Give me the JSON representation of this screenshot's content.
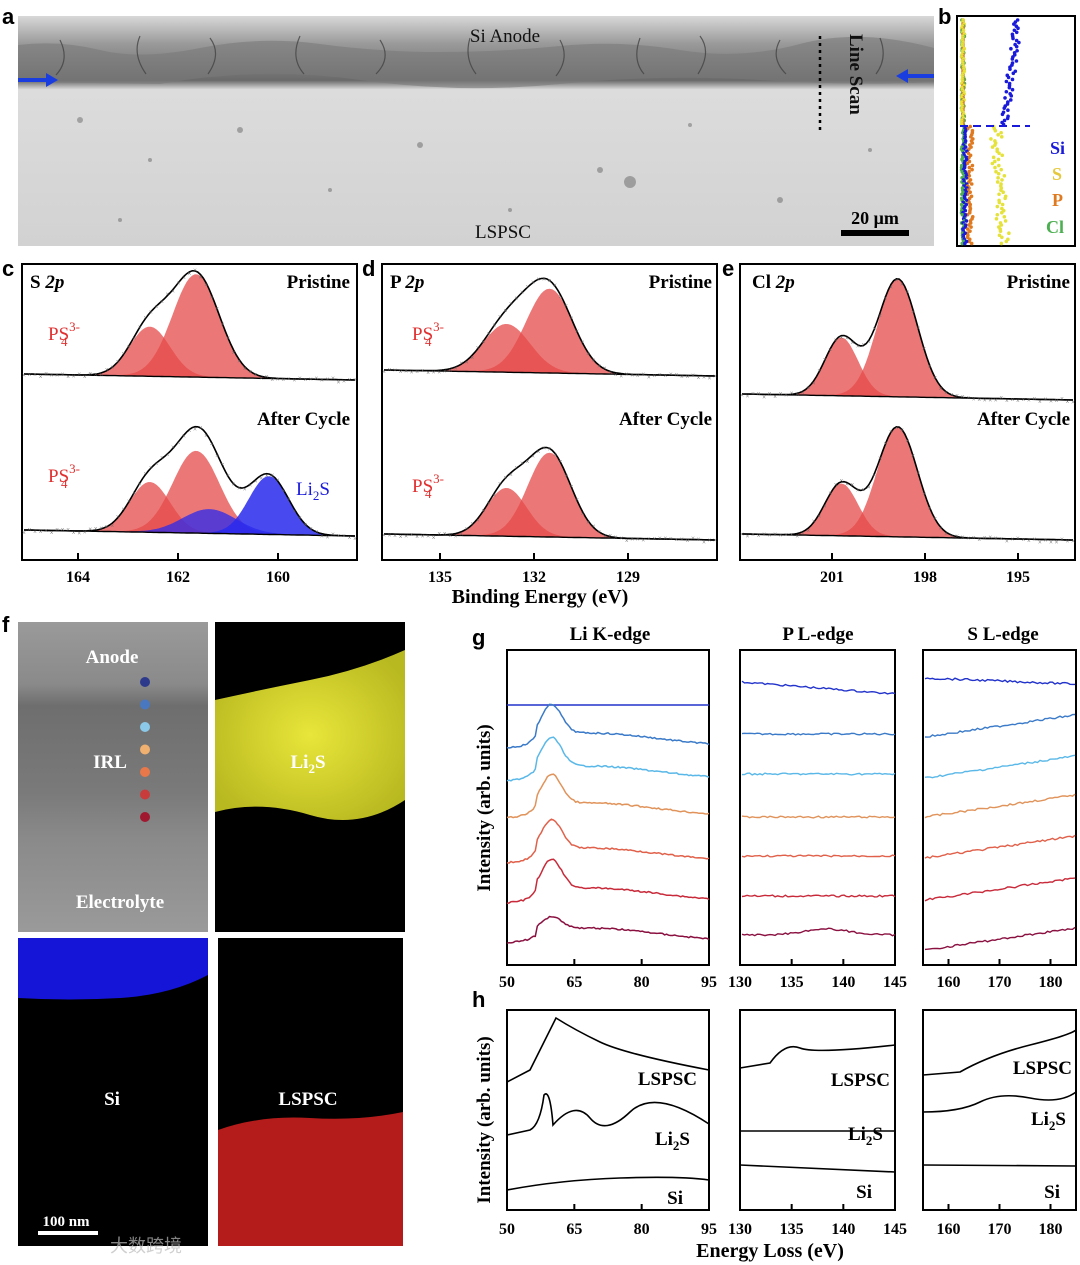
{
  "panels": {
    "a": "a",
    "b": "b",
    "c": "c",
    "d": "d",
    "e": "e",
    "f": "f",
    "g": "g",
    "h": "h"
  },
  "panel_a": {
    "anode": "Si Anode",
    "electrolyte": "LSPSC",
    "line_scan": "Line Scan",
    "scale_bar": "20 μm"
  },
  "panel_b": {
    "legend": [
      "Si",
      "S",
      "P",
      "Cl"
    ],
    "colors": {
      "Si": "#1a1adb",
      "S": "#e6e23c",
      "P": "#e07a20",
      "Cl": "#4caf50"
    }
  },
  "xps": {
    "c": {
      "title_el": "S",
      "title_orb": "2p",
      "top": "Pristine",
      "bottom": "After Cycle",
      "ps_base": "PS",
      "ps_sub": "4",
      "ps_sup": "3-",
      "li_base": "Li",
      "li_sub": "2",
      "li_tail": "S",
      "ticks": [
        "164",
        "162",
        "160"
      ]
    },
    "d": {
      "title_el": "P",
      "title_orb": "2p",
      "top": "Pristine",
      "bottom": "After Cycle",
      "ps_base": "PS",
      "ps_sub": "4",
      "ps_sup": "3-",
      "ticks": [
        "135",
        "132",
        "129"
      ]
    },
    "e": {
      "title_el": "Cl",
      "title_orb": "2p",
      "top": "Pristine",
      "bottom": "After Cycle",
      "ticks": [
        "201",
        "198",
        "195"
      ]
    },
    "xlabel": "Binding Energy (eV)"
  },
  "panel_f": {
    "anode": "Anode",
    "irl": "IRL",
    "electrolyte": "Electrolyte",
    "li2s_base": "Li",
    "li2s_sub": "2",
    "li2s_tail": "S",
    "si": "Si",
    "lspsc": "LSPSC",
    "scale_bar": "100 nm",
    "point_colors": [
      "#2d3a8c",
      "#4a78c0",
      "#8cc8e8",
      "#f0b070",
      "#e8784a",
      "#c83c3c",
      "#a01830"
    ]
  },
  "panel_g": {
    "titles": [
      "Li K-edge",
      "P L-edge",
      "S L-edge"
    ],
    "ylabel": "Intensity (arb. units)",
    "ticks": [
      [
        "50",
        "65",
        "80",
        "95"
      ],
      [
        "130",
        "135",
        "140",
        "145"
      ],
      [
        "160",
        "170",
        "180"
      ]
    ],
    "trace_colors": [
      "#2233cc",
      "#3a7ac8",
      "#5ab8e8",
      "#e0935a",
      "#e0604a",
      "#c82a3a",
      "#8a1040"
    ]
  },
  "panel_h": {
    "ylabel": "Intensity (arb. units)",
    "labels": [
      "LSPSC",
      "Li2S",
      "Si"
    ],
    "li_base": "Li",
    "li_sub": "2",
    "li_tail": "S",
    "ticks": [
      [
        "50",
        "65",
        "80",
        "95"
      ],
      [
        "130",
        "135",
        "140",
        "145"
      ],
      [
        "160",
        "170",
        "180"
      ]
    ],
    "xlabel": "Energy Loss  (eV)"
  },
  "watermark": "大数跨境"
}
